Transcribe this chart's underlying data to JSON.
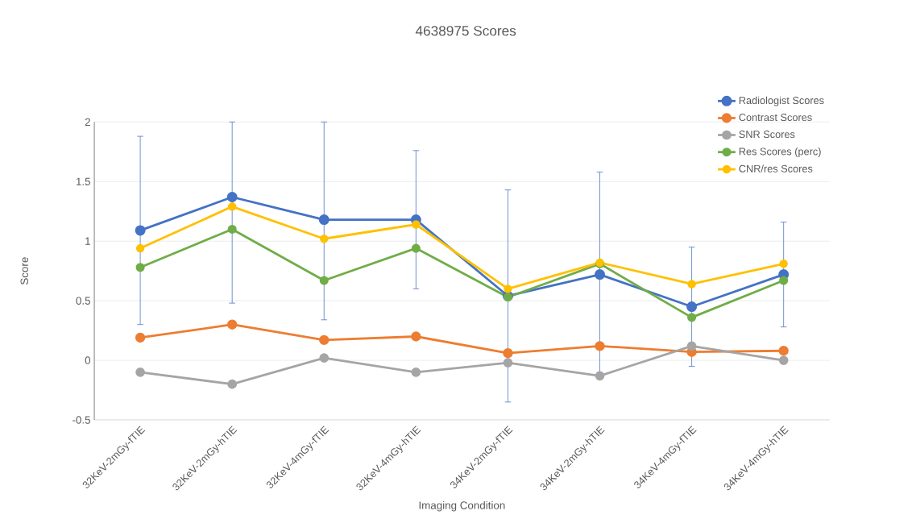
{
  "chart_data": {
    "type": "line",
    "title": "4638975 Scores",
    "xlabel": "Imaging Condition",
    "ylabel": "Score",
    "categories": [
      "32KeV-2mGy-fTIE",
      "32KeV-2mGy-hTIE",
      "32KeV-4mGy-fTIE",
      "32KeV-4mGy-hTIE",
      "34KeV-2mGy-fTIE",
      "34KeV-2mGy-hTIE",
      "34KeV-4mGy-fTIE",
      "34KeV-4mGy-hTIE"
    ],
    "series": [
      {
        "name": "Radiologist Scores",
        "color": "#4472c4",
        "values": [
          1.09,
          1.37,
          1.18,
          1.18,
          0.54,
          0.72,
          0.45,
          0.72
        ],
        "errors": [
          0.79,
          [
            0.48,
            2
          ],
          [
            0.34,
            2
          ],
          0.58,
          0.89,
          0.86,
          0.5,
          0.44
        ]
      },
      {
        "name": "Contrast Scores",
        "color": "#ed7d31",
        "values": [
          0.19,
          0.3,
          0.17,
          0.2,
          0.06,
          0.12,
          0.07,
          0.08
        ]
      },
      {
        "name": "SNR Scores",
        "color": "#a5a5a5",
        "values": [
          -0.1,
          -0.2,
          0.02,
          -0.1,
          -0.02,
          -0.13,
          0.12,
          0.0
        ]
      },
      {
        "name": "Res Scores (perc)",
        "color": "#70ad47",
        "values": [
          0.78,
          1.1,
          0.67,
          0.94,
          0.53,
          0.81,
          0.36,
          0.67
        ]
      },
      {
        "name": "CNR/res Scores",
        "color": "#ffc000",
        "values": [
          0.94,
          1.29,
          1.02,
          1.14,
          0.6,
          0.82,
          0.64,
          0.81
        ]
      }
    ],
    "ylim": [
      -0.5,
      2
    ],
    "yticks": [
      -0.5,
      0,
      0.5,
      1,
      1.5,
      2
    ],
    "grid": "y",
    "legend": "top right",
    "marker": "circle",
    "line_style": "solid"
  }
}
